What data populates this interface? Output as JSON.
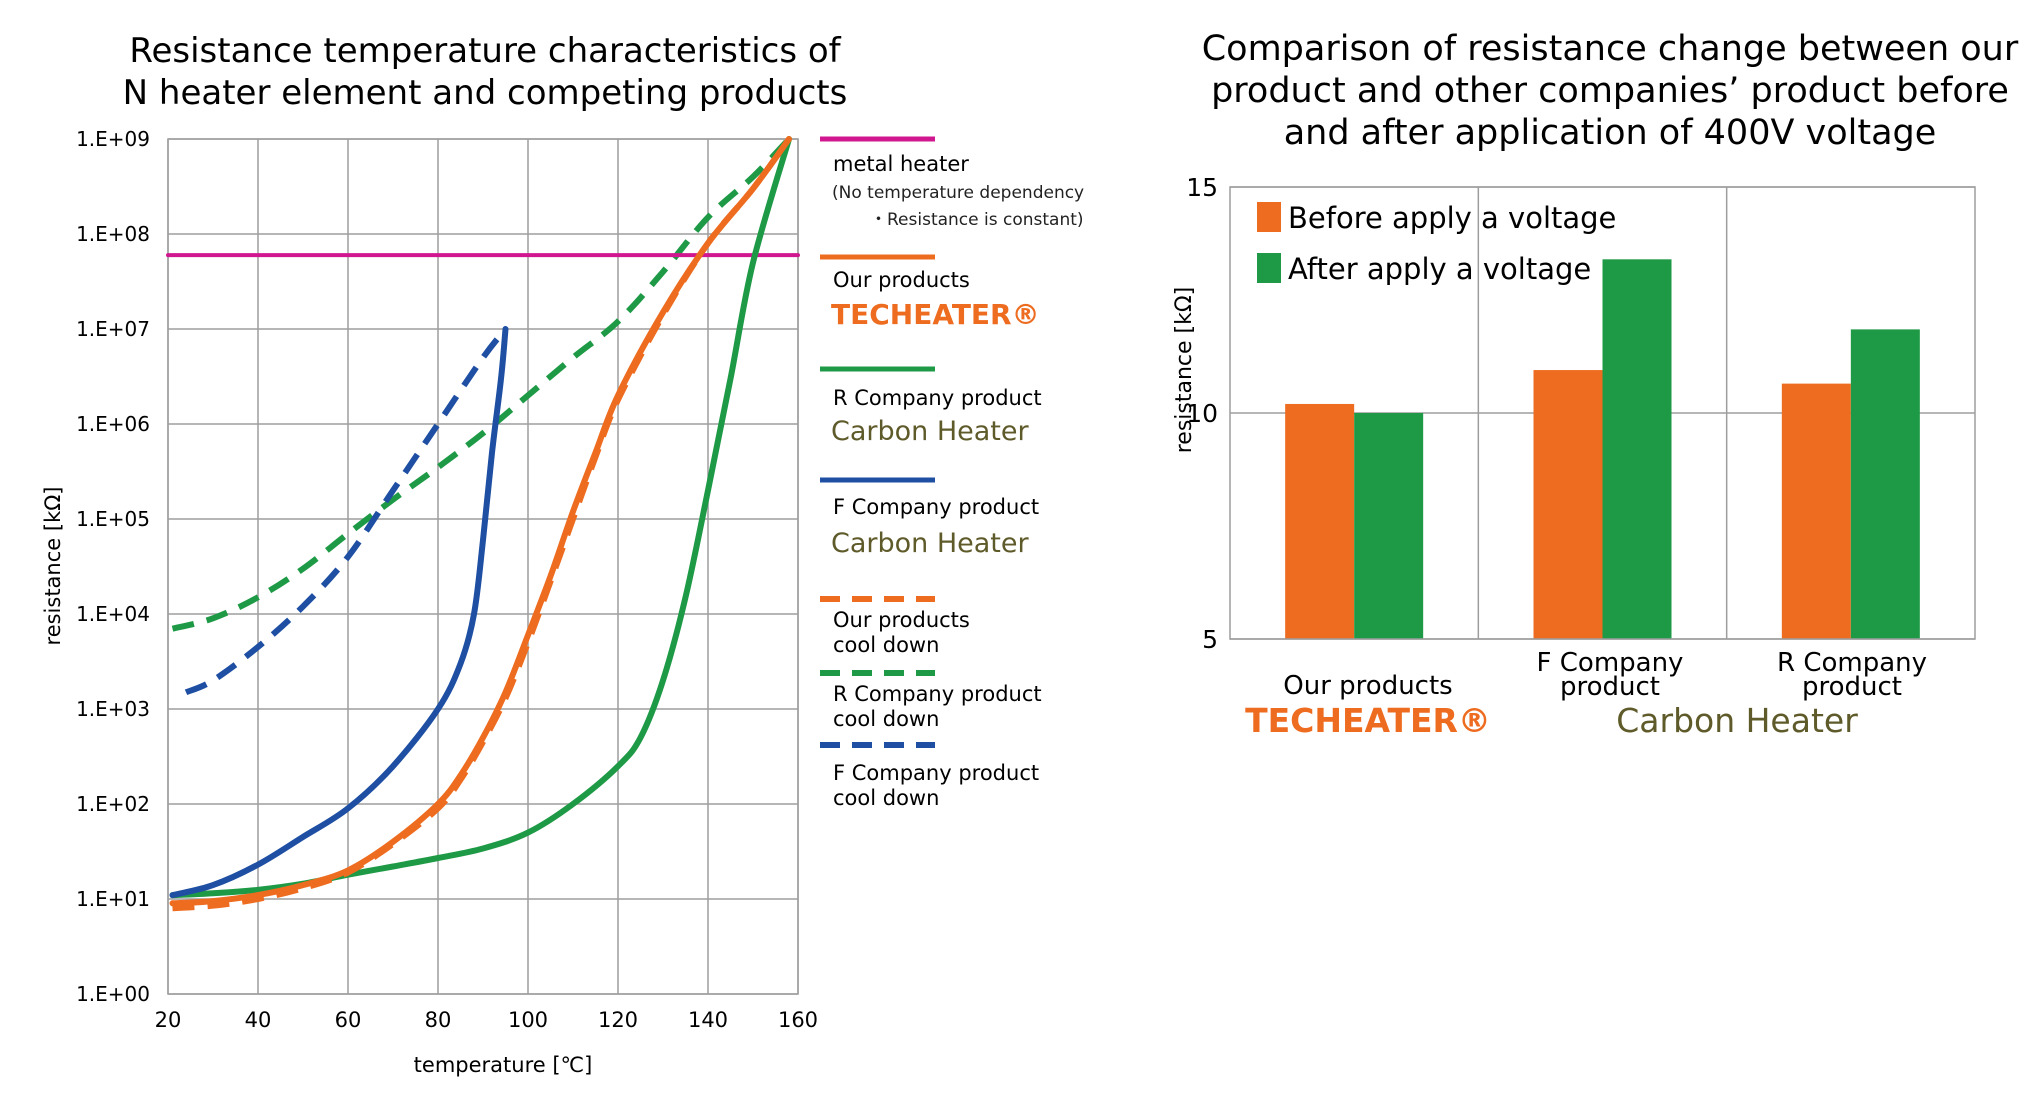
{
  "chart_data": [
    {
      "type": "line",
      "title_lines": [
        "Resistance temperature characteristics of",
        "N heater element and competing products"
      ],
      "xlabel": "temperature [℃]",
      "ylabel": "resistance [kΩ]",
      "xlim": [
        20,
        160
      ],
      "xticks": [
        20,
        40,
        60,
        80,
        100,
        120,
        140,
        160
      ],
      "ylim_log10": [
        0,
        9
      ],
      "ytick_labels": [
        "1.E+00",
        "1.E+01",
        "1.E+02",
        "1.E+03",
        "1.E+04",
        "1.E+05",
        "1.E+06",
        "1.E+07",
        "1.E+08",
        "1.E+09"
      ],
      "grid": true,
      "legend_position": "right",
      "series": [
        {
          "key": "metal",
          "color": "#d0178f",
          "dashed": false,
          "legend_lines": [
            "metal heater"
          ],
          "legend_note_lines": [
            "(No temperature dependency",
            "・Resistance is constant)"
          ],
          "x": [
            20,
            160
          ],
          "y": [
            60000000,
            60000000
          ]
        },
        {
          "key": "ours",
          "color": "#ee6c1f",
          "dashed": false,
          "legend_lines": [
            "Our products"
          ],
          "legend_brand": "TECHEATER®",
          "x": [
            21,
            30,
            40,
            50,
            60,
            70,
            80,
            85,
            90,
            95,
            100,
            105,
            110,
            115,
            120,
            130,
            140,
            150,
            158
          ],
          "y": [
            9,
            9.5,
            11,
            14,
            20,
            40,
            100,
            200,
            500,
            1500,
            6000,
            25000,
            120000,
            500000,
            2000000,
            15000000,
            80000000,
            300000000,
            1000000000
          ]
        },
        {
          "key": "r",
          "color": "#1e9a46",
          "dashed": false,
          "legend_lines": [
            "R Company product"
          ],
          "legend_brand": "Carbon Heater",
          "x": [
            21,
            30,
            40,
            50,
            60,
            70,
            80,
            90,
            100,
            110,
            120,
            125,
            130,
            135,
            140,
            145,
            150,
            158
          ],
          "y": [
            11,
            11.5,
            12.5,
            14.5,
            18,
            22,
            27,
            34,
            50,
            100,
            250,
            500,
            2000,
            15000,
            200000,
            3000000,
            50000000,
            1000000000
          ]
        },
        {
          "key": "f",
          "color": "#1e4fa3",
          "dashed": false,
          "legend_lines": [
            "F Company product"
          ],
          "legend_brand": "Carbon Heater",
          "x": [
            21,
            30,
            40,
            50,
            60,
            70,
            80,
            85,
            88,
            90,
            92,
            94,
            95
          ],
          "y": [
            11,
            14,
            23,
            45,
            90,
            250,
            1000,
            3000,
            10000,
            60000,
            500000,
            3000000,
            10000000
          ]
        },
        {
          "key": "ours_cool",
          "color": "#ee6c1f",
          "dashed": true,
          "legend_lines": [
            "Our products",
            "cool down"
          ],
          "x": [
            21,
            30,
            40,
            50,
            60,
            70,
            80,
            85,
            90,
            95,
            100,
            105,
            110,
            115,
            120,
            130,
            140,
            150,
            158
          ],
          "y": [
            8,
            8.5,
            10,
            13,
            19,
            38,
            90,
            180,
            450,
            1300,
            5000,
            22000,
            100000,
            450000,
            1800000,
            14000000,
            80000000,
            300000000,
            1000000000
          ]
        },
        {
          "key": "r_cool",
          "color": "#1e9a46",
          "dashed": true,
          "legend_lines": [
            "R Company product",
            "cool down"
          ],
          "x": [
            21,
            30,
            40,
            50,
            60,
            70,
            80,
            90,
            100,
            110,
            120,
            130,
            140,
            150,
            158
          ],
          "y": [
            7000,
            9000,
            15000,
            30000,
            70000,
            160000,
            350000,
            800000,
            2000000,
            5000000,
            12000000,
            40000000,
            150000000,
            400000000,
            1000000000
          ]
        },
        {
          "key": "f_cool",
          "color": "#1e4fa3",
          "dashed": true,
          "legend_lines": [
            "F Company product",
            "cool down"
          ],
          "x": [
            24,
            30,
            40,
            50,
            60,
            70,
            80,
            90,
            95
          ],
          "y": [
            1500,
            2000,
            4500,
            12000,
            40000,
            200000,
            1000000,
            5000000,
            10000000
          ]
        }
      ]
    },
    {
      "type": "bar",
      "title_lines": [
        "Comparison of resistance change between our",
        "product and other companies’ product before",
        "and after application of 400V voltage"
      ],
      "xlabel": "",
      "ylabel": "resistance [kΩ]",
      "ylim": [
        5,
        15
      ],
      "yticks": [
        5,
        10,
        15
      ],
      "legend_position": "top-left",
      "categories": [
        {
          "label_lines": [
            "Our products"
          ],
          "brand": "TECHEATER®"
        },
        {
          "label_lines": [
            "F Company",
            "product"
          ]
        },
        {
          "label_lines": [
            "R Company",
            "product"
          ]
        }
      ],
      "group_brand": "Carbon Heater",
      "series": [
        {
          "name": "Before apply a voltage",
          "color": "#ee6c1f",
          "values": [
            10.2,
            10.95,
            10.65
          ]
        },
        {
          "name": "After apply a voltage",
          "color": "#1e9a46",
          "values": [
            10.0,
            13.4,
            11.85
          ]
        }
      ]
    }
  ],
  "colors": {
    "grid": "#9e9e9e",
    "brand_orange": "#ee6c1f",
    "brand_olive": "#5e5a2a"
  }
}
